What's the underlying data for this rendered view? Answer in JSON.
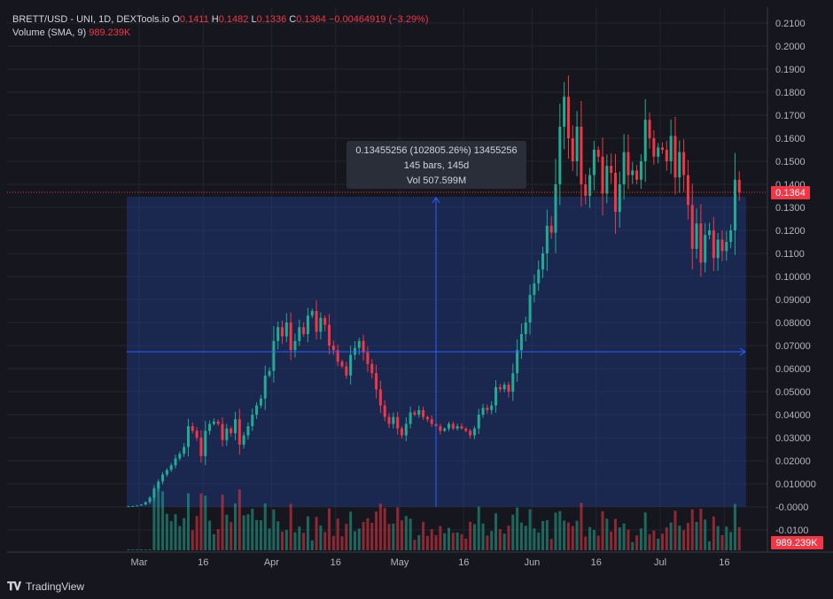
{
  "header": {
    "symbol": "BRETT/USD - UNI, 1D, DEXTools.io",
    "o_label": "O",
    "o_value": "0.1411",
    "h_label": "H",
    "h_value": "0.1482",
    "l_label": "L",
    "l_value": "0.1336",
    "c_label": "C",
    "c_value": "0.1364",
    "change": "−0.00464919 (−3.29%)",
    "volume_label": "Volume (SMA, 9)",
    "volume_value": "989.239K"
  },
  "measure_tooltip": {
    "line1": "0.13455256 (102805.26%) 13455256",
    "line2": "145 bars, 145d",
    "line3": "Vol 507.599M"
  },
  "price_tag": "0.1364",
  "volume_tag": "989.239K",
  "footer": {
    "brand": "TradingView",
    "logo": "TV-logo"
  },
  "colors": {
    "up": "#22ab94",
    "down": "#f23645",
    "measure": "#2962ff",
    "background": "#16171e"
  },
  "chart_data": {
    "type": "candlestick",
    "y_ticks": [
      "0.2100",
      "0.2000",
      "0.1900",
      "0.1800",
      "0.1700",
      "0.1600",
      "0.1500",
      "0.1400",
      "0.1300",
      "0.1200",
      "0.1100",
      "0.10000",
      "0.09000",
      "0.08000",
      "0.07000",
      "0.06000",
      "0.05000",
      "0.04000",
      "0.03000",
      "0.02000",
      "0.010000",
      "-0.0000",
      "-0.0100"
    ],
    "x_ticks": [
      {
        "label": "Mar",
        "day": 0
      },
      {
        "label": "16",
        "day": 15
      },
      {
        "label": "Apr",
        "day": 31
      },
      {
        "label": "16",
        "day": 46
      },
      {
        "label": "May",
        "day": 61
      },
      {
        "label": "16",
        "day": 76
      },
      {
        "label": "Jun",
        "day": 92
      },
      {
        "label": "16",
        "day": 107
      },
      {
        "label": "Jul",
        "day": 122
      },
      {
        "label": "16",
        "day": 137
      }
    ],
    "close": [
      0.0003,
      0.0004,
      0.0006,
      0.001,
      0.002,
      0.004,
      0.008,
      0.011,
      0.014,
      0.016,
      0.018,
      0.021,
      0.023,
      0.026,
      0.035,
      0.033,
      0.03,
      0.022,
      0.033,
      0.036,
      0.037,
      0.036,
      0.029,
      0.034,
      0.032,
      0.038,
      0.027,
      0.031,
      0.035,
      0.04,
      0.044,
      0.047,
      0.057,
      0.059,
      0.072,
      0.078,
      0.074,
      0.08,
      0.068,
      0.072,
      0.078,
      0.075,
      0.083,
      0.085,
      0.076,
      0.082,
      0.079,
      0.07,
      0.068,
      0.063,
      0.061,
      0.057,
      0.066,
      0.069,
      0.072,
      0.067,
      0.062,
      0.058,
      0.051,
      0.044,
      0.039,
      0.036,
      0.039,
      0.034,
      0.031,
      0.036,
      0.041,
      0.04,
      0.042,
      0.039,
      0.038,
      0.036,
      0.035,
      0.033,
      0.034,
      0.036,
      0.034,
      0.035,
      0.034,
      0.033,
      0.031,
      0.034,
      0.04,
      0.043,
      0.042,
      0.044,
      0.052,
      0.051,
      0.053,
      0.05,
      0.058,
      0.068,
      0.075,
      0.08,
      0.092,
      0.097,
      0.103,
      0.11,
      0.122,
      0.119,
      0.14,
      0.165,
      0.178,
      0.16,
      0.15,
      0.165,
      0.14,
      0.135,
      0.144,
      0.155,
      0.152,
      0.136,
      0.148,
      0.145,
      0.128,
      0.14,
      0.154,
      0.144,
      0.146,
      0.142,
      0.15,
      0.168,
      0.16,
      0.152,
      0.156,
      0.155,
      0.15,
      0.161,
      0.143,
      0.154,
      0.144,
      0.131,
      0.112,
      0.123,
      0.106,
      0.118,
      0.12,
      0.108,
      0.116,
      0.111,
      0.115,
      0.12,
      0.142,
      0.1364
    ],
    "ylim": [
      -0.014,
      0.2135
    ]
  }
}
